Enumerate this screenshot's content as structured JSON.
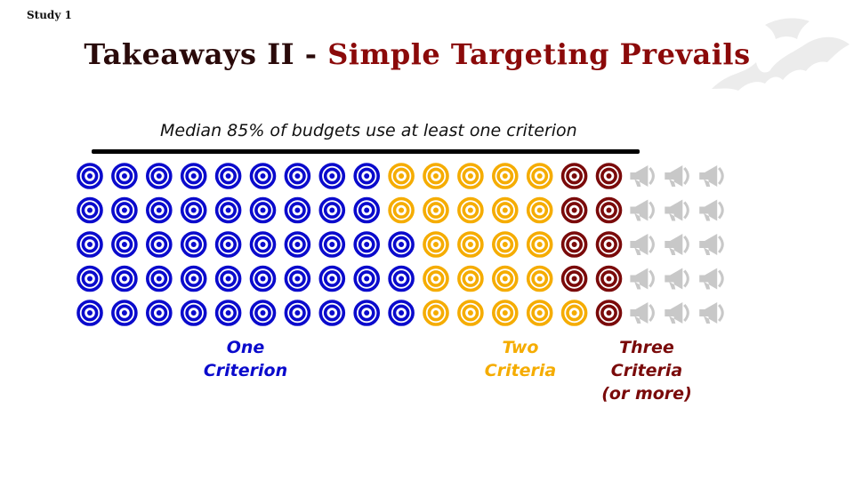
{
  "header": {
    "study_label": "Study 1",
    "title_part1": "Takeaways II - ",
    "title_part2": "Simple Targeting Prevails"
  },
  "median_note": "Median 85% of budgets use at least one criterion",
  "waffle": {
    "rows": [
      [
        "one",
        "one",
        "one",
        "one",
        "one",
        "one",
        "one",
        "one",
        "one",
        "two",
        "two",
        "two",
        "two",
        "two",
        "three",
        "three",
        "none",
        "none",
        "none"
      ],
      [
        "one",
        "one",
        "one",
        "one",
        "one",
        "one",
        "one",
        "one",
        "one",
        "two",
        "two",
        "two",
        "two",
        "two",
        "three",
        "three",
        "none",
        "none",
        "none"
      ],
      [
        "one",
        "one",
        "one",
        "one",
        "one",
        "one",
        "one",
        "one",
        "one",
        "one",
        "two",
        "two",
        "two",
        "two",
        "three",
        "three",
        "none",
        "none",
        "none"
      ],
      [
        "one",
        "one",
        "one",
        "one",
        "one",
        "one",
        "one",
        "one",
        "one",
        "one",
        "two",
        "two",
        "two",
        "two",
        "three",
        "three",
        "none",
        "none",
        "none"
      ],
      [
        "one",
        "one",
        "one",
        "one",
        "one",
        "one",
        "one",
        "one",
        "one",
        "one",
        "two",
        "two",
        "two",
        "two",
        "two",
        "three",
        "none",
        "none",
        "none"
      ]
    ],
    "icons": {
      "one": "target-icon",
      "two": "target-icon",
      "three": "target-icon",
      "none": "megaphone-icon"
    },
    "colors": {
      "one": "#0a0acc",
      "two": "#f5ac00",
      "three": "#7a0a0a",
      "none": "#c8c8c8"
    }
  },
  "labels": {
    "one_line1": "One",
    "one_line2": "Criterion",
    "two_line1": "Two",
    "two_line2": "Criteria",
    "three_line1": "Three",
    "three_line2": "Criteria",
    "three_line3": "(or more)"
  }
}
